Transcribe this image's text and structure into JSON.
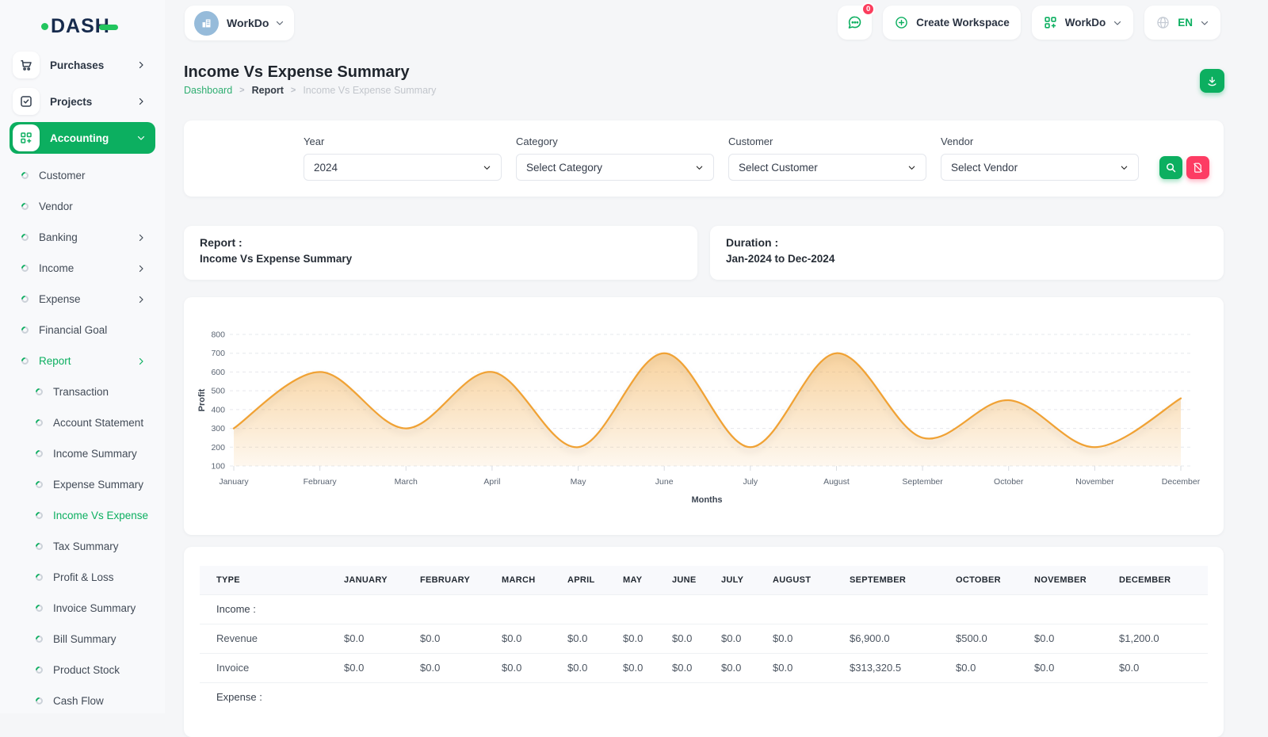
{
  "brand": {
    "name": "DASH"
  },
  "topbar": {
    "workspace_selector": {
      "name": "WorkDo"
    },
    "messages_badge": "0",
    "create_workspace_label": "Create Workspace",
    "workspace_menu_label": "WorkDo",
    "language_label": "EN"
  },
  "sidebar": {
    "top_items": [
      {
        "label": "Purchases"
      },
      {
        "label": "Projects"
      },
      {
        "label": "Accounting"
      }
    ],
    "accounting_items": [
      {
        "label": "Customer"
      },
      {
        "label": "Vendor"
      },
      {
        "label": "Banking"
      },
      {
        "label": "Income"
      },
      {
        "label": "Expense"
      },
      {
        "label": "Financial Goal"
      },
      {
        "label": "Report"
      }
    ],
    "report_items": [
      {
        "label": "Transaction"
      },
      {
        "label": "Account Statement"
      },
      {
        "label": "Income Summary"
      },
      {
        "label": "Expense Summary"
      },
      {
        "label": "Income Vs Expense"
      },
      {
        "label": "Tax Summary"
      },
      {
        "label": "Profit & Loss"
      },
      {
        "label": "Invoice Summary"
      },
      {
        "label": "Bill Summary"
      },
      {
        "label": "Product Stock"
      },
      {
        "label": "Cash Flow"
      }
    ]
  },
  "page": {
    "title": "Income Vs Expense Summary",
    "breadcrumb": [
      {
        "label": "Dashboard"
      },
      {
        "label": "Report"
      },
      {
        "label": "Income Vs Expense Summary"
      }
    ]
  },
  "filters": {
    "year": {
      "label": "Year",
      "value": "2024"
    },
    "category": {
      "label": "Category",
      "value": "Select Category"
    },
    "customer": {
      "label": "Customer",
      "value": "Select Customer"
    },
    "vendor": {
      "label": "Vendor",
      "value": "Select Vendor"
    }
  },
  "info_cards": {
    "report_label": "Report :",
    "report_value": "Income Vs Expense Summary",
    "duration_label": "Duration :",
    "duration_value": "Jan-2024 to Dec-2024"
  },
  "chart_data": {
    "type": "area",
    "x": [
      "January",
      "February",
      "March",
      "April",
      "May",
      "June",
      "July",
      "August",
      "September",
      "October",
      "November",
      "December"
    ],
    "series": [
      {
        "name": "Profit",
        "values": [
          300,
          600,
          300,
          600,
          200,
          700,
          200,
          700,
          250,
          450,
          200,
          460
        ]
      }
    ],
    "xlabel": "Months",
    "ylabel": "Profit",
    "ylim": [
      100,
      800
    ],
    "ytick_step": 100,
    "grid": "dashed-horizontal",
    "legend": "none",
    "line_color": "#f0a236",
    "fill_color": "#f0a236"
  },
  "table": {
    "headers": [
      "TYPE",
      "JANUARY",
      "FEBRUARY",
      "MARCH",
      "APRIL",
      "MAY",
      "JUNE",
      "JULY",
      "AUGUST",
      "SEPTEMBER",
      "OCTOBER",
      "NOVEMBER",
      "DECEMBER"
    ],
    "rows": [
      {
        "kind": "section",
        "label": "Income :"
      },
      {
        "kind": "data",
        "type": "Revenue",
        "values": [
          "$0.0",
          "$0.0",
          "$0.0",
          "$0.0",
          "$0.0",
          "$0.0",
          "$0.0",
          "$0.0",
          "$6,900.0",
          "$500.0",
          "$0.0",
          "$1,200.0"
        ]
      },
      {
        "kind": "data",
        "type": "Invoice",
        "values": [
          "$0.0",
          "$0.0",
          "$0.0",
          "$0.0",
          "$0.0",
          "$0.0",
          "$0.0",
          "$0.0",
          "$313,320.5",
          "$0.0",
          "$0.0",
          "$0.0"
        ]
      },
      {
        "kind": "section",
        "label": "Expense :"
      }
    ]
  }
}
